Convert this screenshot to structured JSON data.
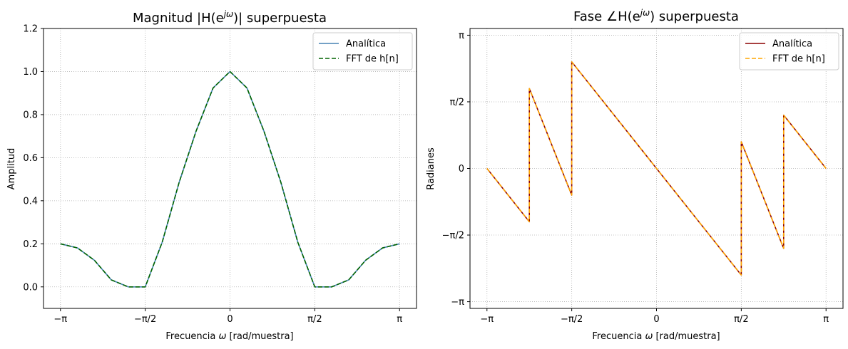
{
  "chart_data": [
    {
      "type": "line",
      "title_prefix": "Magnitud |H(e",
      "title_sup": "jω",
      "title_suffix": ")| superpuesta",
      "xlabel_prefix": "Frecuencia ",
      "xlabel_symbol": "ω",
      "xlabel_suffix": " [rad/muestra]",
      "ylabel": "Amplitud",
      "xlim": [
        -3.4558,
        3.4558
      ],
      "ylim": [
        -0.1,
        1.2
      ],
      "xticks": [
        -3.14159,
        -1.5708,
        0,
        1.5708,
        3.14159
      ],
      "xtick_labels": [
        "−π",
        "−π/2",
        "0",
        "π/2",
        "π"
      ],
      "yticks": [
        0.0,
        0.2,
        0.4,
        0.6,
        0.8,
        1.0,
        1.2
      ],
      "ytick_labels": [
        "0.0",
        "0.2",
        "0.4",
        "0.6",
        "0.8",
        "1.0",
        "1.2"
      ],
      "grid": true,
      "legend_position": "top-right",
      "x": [
        -3.1416,
        -2.8274,
        -2.5133,
        -2.1991,
        -1.885,
        -1.5708,
        -1.2566,
        -0.9425,
        -0.6283,
        -0.3142,
        0.0,
        0.3142,
        0.6283,
        0.9425,
        1.2566,
        1.5708,
        1.885,
        2.1991,
        2.5133,
        2.8274,
        3.1416
      ],
      "series": [
        {
          "name": "Analítica",
          "color": "#4682b4",
          "dash": "solid",
          "values": [
            0.2,
            0.1809,
            0.1236,
            0.0323,
            0.0,
            0.0,
            0.2073,
            0.4853,
            0.7236,
            0.9236,
            1.0,
            0.9236,
            0.7236,
            0.4853,
            0.2073,
            0.0,
            0.0,
            0.0323,
            0.1236,
            0.1809,
            0.2
          ]
        },
        {
          "name": "FFT de h[n]",
          "color": "#006400",
          "dash": "dashed",
          "values": [
            0.2,
            0.1809,
            0.1236,
            0.0323,
            0.0,
            0.0,
            0.2073,
            0.4853,
            0.7236,
            0.9236,
            1.0,
            0.9236,
            0.7236,
            0.4853,
            0.2073,
            0.0,
            0.0,
            0.0323,
            0.1236,
            0.1809,
            0.2
          ]
        }
      ]
    },
    {
      "type": "line",
      "title_prefix": "Fase ∠H(e",
      "title_sup": "jω",
      "title_suffix": ") superpuesta",
      "xlabel_prefix": "Frecuencia ",
      "xlabel_symbol": "ω",
      "xlabel_suffix": " [rad/muestra]",
      "ylabel": "Radianes",
      "xlim": [
        -3.4558,
        3.4558
      ],
      "ylim": [
        -3.3,
        3.3
      ],
      "xticks": [
        -3.14159,
        -1.5708,
        0,
        1.5708,
        3.14159
      ],
      "xtick_labels": [
        "−π",
        "−π/2",
        "0",
        "π/2",
        "π"
      ],
      "yticks": [
        -3.14159,
        -1.5708,
        0,
        1.5708,
        3.14159
      ],
      "ytick_labels": [
        "−π",
        "−π/2",
        "0",
        "π/2",
        "π"
      ],
      "grid": true,
      "legend_position": "top-right",
      "x": [
        -3.1416,
        -2.3562,
        -2.3561,
        -1.5708,
        -1.5707,
        1.5707,
        1.5708,
        2.3561,
        2.3562,
        3.1416
      ],
      "series": [
        {
          "name": "Analítica",
          "color": "#8b0000",
          "dash": "solid",
          "values": [
            0.0,
            -1.2566,
            1.885,
            -0.6283,
            2.5133,
            -2.5133,
            0.6283,
            -1.885,
            1.2566,
            0.0
          ]
        },
        {
          "name": "FFT de h[n]",
          "color": "#ffa500",
          "dash": "dashed",
          "values": [
            0.0,
            -1.2566,
            1.885,
            -0.6283,
            2.5133,
            -2.5133,
            0.6283,
            -1.885,
            1.2566,
            0.0
          ]
        }
      ]
    }
  ]
}
